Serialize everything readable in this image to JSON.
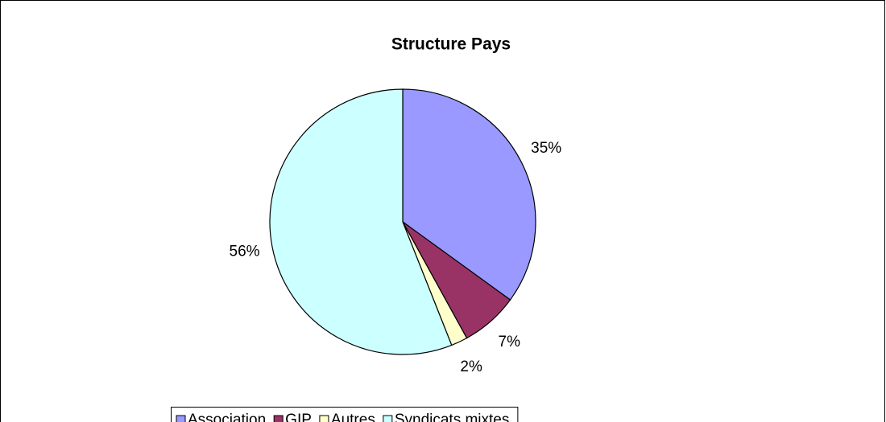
{
  "chart_data": {
    "type": "pie",
    "title": "Structure Pays",
    "categories": [
      "Association",
      "GIP",
      "Autres",
      "Syndicats mixtes"
    ],
    "values": [
      35,
      7,
      2,
      56
    ],
    "value_labels": [
      "35%",
      "7%",
      "2%",
      "56%"
    ],
    "colors": [
      "#9999ff",
      "#993366",
      "#ffffcc",
      "#ccffff"
    ],
    "legend": "bottom"
  }
}
